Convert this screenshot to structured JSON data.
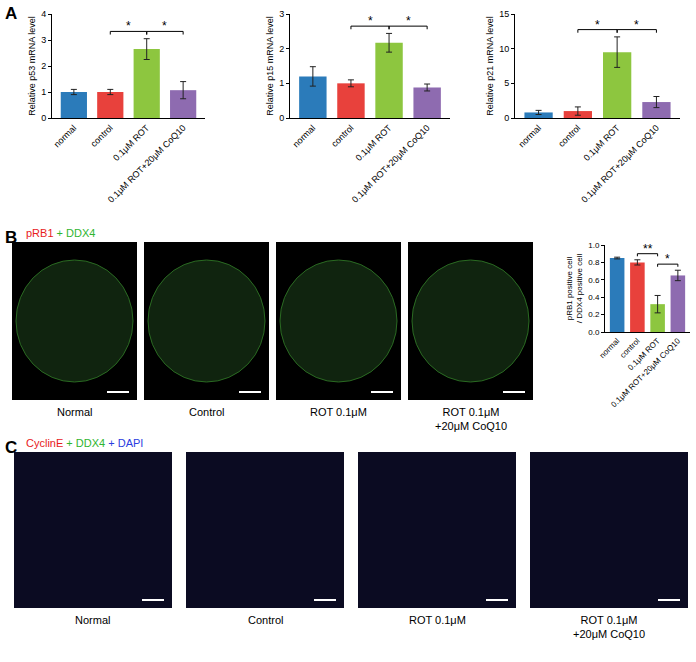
{
  "panel_labels": [
    "A",
    "B",
    "C"
  ],
  "chart_data": [
    {
      "type": "bar",
      "categories": [
        "normal",
        "control",
        "0.1μM ROT",
        "0.1μM ROT+20μM CoQ10"
      ],
      "values": [
        1.0,
        1.0,
        2.65,
        1.07
      ],
      "errors": [
        0.1,
        0.1,
        0.4,
        0.33
      ],
      "colors": [
        "#2b7bba",
        "#e8413c",
        "#8dc63f",
        "#8e6bb0"
      ],
      "ylabel": "Relative p53 mRNA level",
      "ylim": [
        0,
        4
      ],
      "yticks": [
        0,
        1,
        2,
        3,
        4
      ],
      "grid": false,
      "significance": [
        {
          "pair": [
            "control",
            "0.1μM ROT"
          ],
          "label": "*"
        },
        {
          "pair": [
            "0.1μM ROT",
            "0.1μM ROT+20μM CoQ10"
          ],
          "label": "*"
        }
      ]
    },
    {
      "type": "bar",
      "categories": [
        "normal",
        "control",
        "0.1μM ROT",
        "0.1μM ROT+20μM CoQ10"
      ],
      "values": [
        1.2,
        1.0,
        2.17,
        0.88
      ],
      "errors": [
        0.28,
        0.1,
        0.27,
        0.1
      ],
      "colors": [
        "#2b7bba",
        "#e8413c",
        "#8dc63f",
        "#8e6bb0"
      ],
      "ylabel": "Relative p15 mRNA level",
      "ylim": [
        0,
        3
      ],
      "yticks": [
        0,
        1,
        2,
        3
      ],
      "grid": false,
      "significance": [
        {
          "pair": [
            "control",
            "0.1μM ROT"
          ],
          "label": "*"
        },
        {
          "pair": [
            "0.1μM ROT",
            "0.1μM ROT+20μM CoQ10"
          ],
          "label": "*"
        }
      ]
    },
    {
      "type": "bar",
      "categories": [
        "normal",
        "control",
        "0.1μM ROT",
        "0.1μM ROT+20μM CoQ10"
      ],
      "values": [
        0.8,
        1.0,
        9.5,
        2.3
      ],
      "errors": [
        0.3,
        0.6,
        2.2,
        0.8
      ],
      "colors": [
        "#2b7bba",
        "#e8413c",
        "#8dc63f",
        "#8e6bb0"
      ],
      "ylabel": "Relative p21 mRNA level",
      "ylim": [
        0,
        15
      ],
      "yticks": [
        0,
        5,
        10,
        15
      ],
      "grid": false,
      "significance": [
        {
          "pair": [
            "control",
            "0.1μM ROT"
          ],
          "label": "*"
        },
        {
          "pair": [
            "0.1μM ROT",
            "0.1μM ROT+20μM CoQ10"
          ],
          "label": "*"
        }
      ]
    },
    {
      "type": "bar",
      "categories": [
        "normal",
        "control",
        "0.1μM ROT",
        "0.1μM ROT+20μM CoQ10"
      ],
      "values": [
        0.85,
        0.8,
        0.32,
        0.65
      ],
      "errors": [
        0.01,
        0.03,
        0.1,
        0.06
      ],
      "colors": [
        "#2b7bba",
        "#e8413c",
        "#8dc63f",
        "#8e6bb0"
      ],
      "ylabel": "pRB1 positive cell / DDX4 positive cell",
      "ylim": [
        0,
        1
      ],
      "yticks": [
        {
          "value": 0,
          "label": "0.0"
        },
        0.2,
        0.4,
        0.6,
        0.8,
        {
          "value": 1,
          "label": "1.0"
        }
      ],
      "grid": false,
      "significance": [
        {
          "pair": [
            "control",
            "0.1μM ROT"
          ],
          "label": "**"
        },
        {
          "pair": [
            "0.1μM ROT",
            "0.1μM ROT+20μM CoQ10"
          ],
          "label": "*"
        }
      ]
    }
  ],
  "image_panels": [
    {
      "stain": [
        {
          "text": "pRB1",
          "color": "#e8201c"
        },
        {
          "text": " + DDX4",
          "color": "#2fb52f"
        }
      ],
      "captions": [
        [
          "Normal"
        ],
        [
          "Control"
        ],
        [
          "ROT 0.1μM"
        ],
        [
          "ROT 0.1μM",
          "+20μM CoQ10"
        ]
      ]
    },
    {
      "stain": [
        {
          "text": "CyclinE",
          "color": "#e8201c"
        },
        {
          "text": " + DDX4",
          "color": "#2fb52f"
        },
        {
          "text": " + DAPI",
          "color": "#2a3de0"
        }
      ],
      "captions": [
        [
          "Normal"
        ],
        [
          "Control"
        ],
        [
          "ROT 0.1μM"
        ],
        [
          "ROT 0.1μM",
          "+20μM CoQ10"
        ]
      ]
    }
  ]
}
